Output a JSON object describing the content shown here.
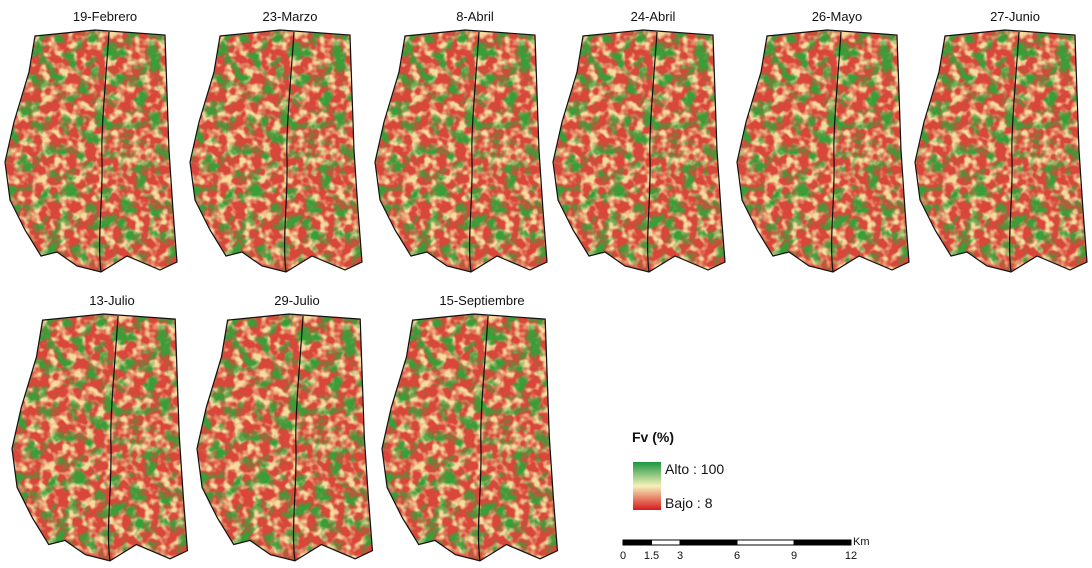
{
  "panels": [
    "19-Febrero",
    "23-Marzo",
    "8-Abril",
    "24-Abril",
    "26-Mayo",
    "27-Junio",
    "13-Julio",
    "29-Julio",
    "15-Septiembre"
  ],
  "legend": {
    "title": "Fv (%)",
    "high": "Alto : 100",
    "low": "Bajo : 8"
  },
  "scale_bar": {
    "ticks": [
      0,
      1.5,
      3,
      6,
      9,
      12
    ],
    "unit": "Km"
  }
}
